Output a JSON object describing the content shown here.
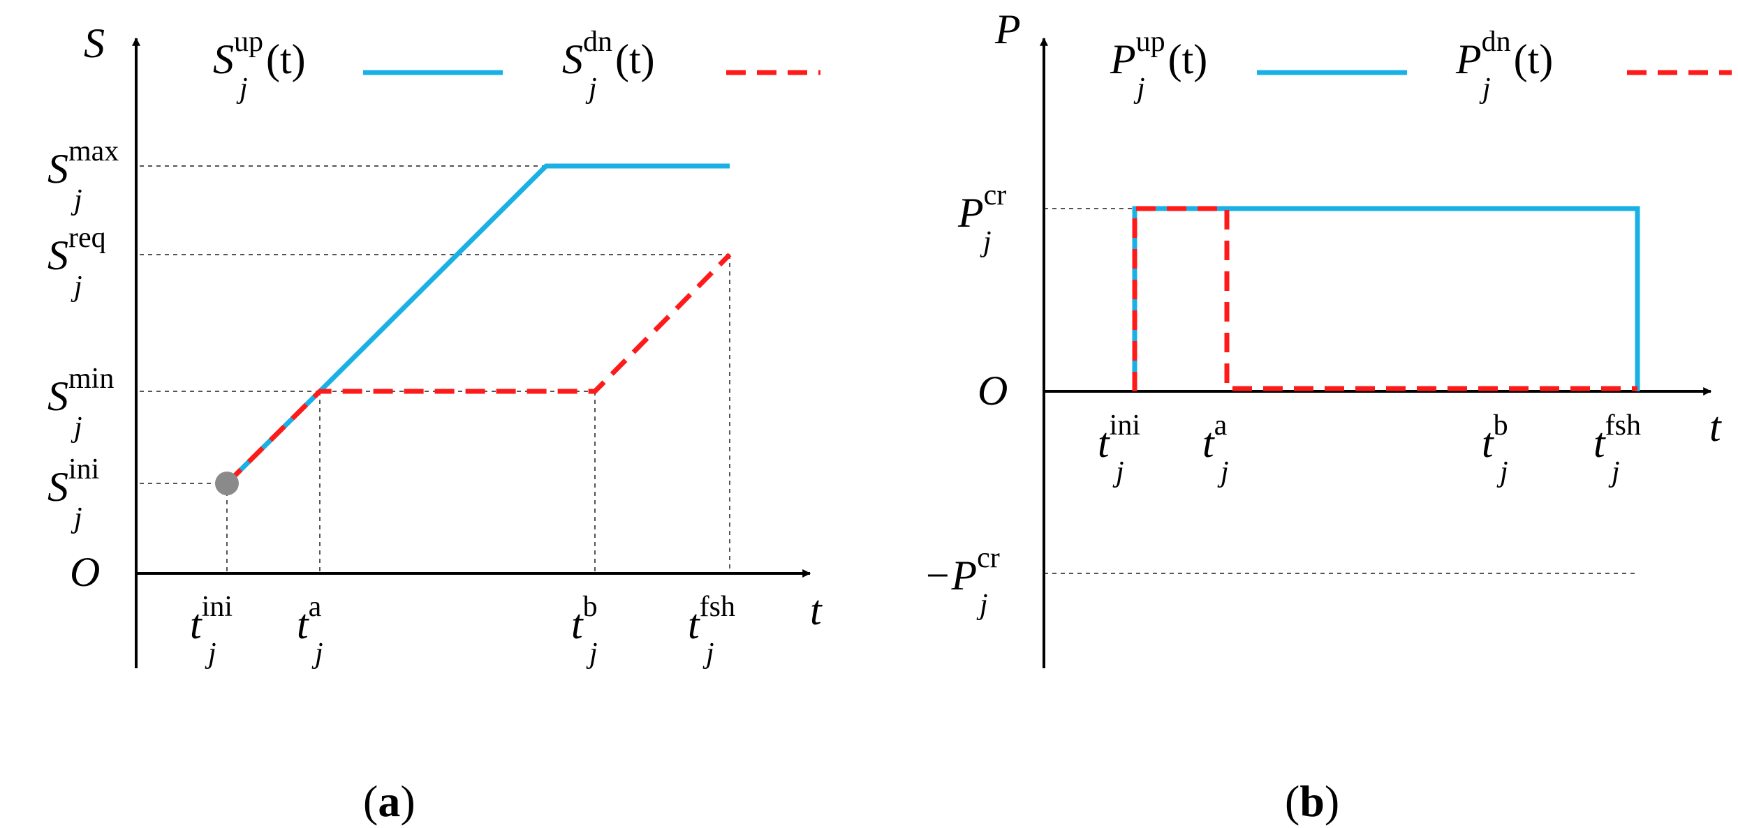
{
  "colors": {
    "up": "#1ab0e6",
    "dn": "#ff1a1a",
    "axis": "#000000",
    "start_dot": "#8a8a8a"
  },
  "panel_a": {
    "caption": "a",
    "y_axis": {
      "symbol": "S",
      "ticks": [
        {
          "main": "S",
          "sub": "j",
          "sup": "max"
        },
        {
          "main": "S",
          "sub": "j",
          "sup": "req"
        },
        {
          "main": "S",
          "sub": "j",
          "sup": "min"
        },
        {
          "main": "S",
          "sub": "j",
          "sup": "ini"
        }
      ]
    },
    "x_axis": {
      "symbol": "t",
      "ticks": [
        {
          "main": "t",
          "sub": "j",
          "sup": "ini"
        },
        {
          "main": "t",
          "sub": "j",
          "sup": "a"
        },
        {
          "main": "t",
          "sub": "j",
          "sup": "b"
        },
        {
          "main": "t",
          "sub": "j",
          "sup": "fsh"
        }
      ]
    },
    "origin": "O",
    "legend": [
      {
        "main": "S",
        "sub": "j",
        "sup": "up",
        "arg": "(t)",
        "style": "solid"
      },
      {
        "main": "S",
        "sub": "j",
        "sup": "dn",
        "arg": "(t)",
        "style": "dashed"
      }
    ]
  },
  "panel_b": {
    "caption": "b",
    "y_axis": {
      "symbol": "P",
      "ticks": [
        {
          "main": "P",
          "sub": "j",
          "sup": "cr"
        },
        {
          "main": "−P",
          "sub": "j",
          "sup": "cr"
        }
      ]
    },
    "x_axis": {
      "symbol": "t",
      "ticks": [
        {
          "main": "t",
          "sub": "j",
          "sup": "ini"
        },
        {
          "main": "t",
          "sub": "j",
          "sup": "a"
        },
        {
          "main": "t",
          "sub": "j",
          "sup": "b"
        },
        {
          "main": "t",
          "sub": "j",
          "sup": "fsh"
        }
      ]
    },
    "origin": "O",
    "legend": [
      {
        "main": "P",
        "sub": "j",
        "sup": "up",
        "arg": "(t)",
        "style": "solid"
      },
      {
        "main": "P",
        "sub": "j",
        "sup": "dn",
        "arg": "(t)",
        "style": "dashed"
      }
    ]
  }
}
